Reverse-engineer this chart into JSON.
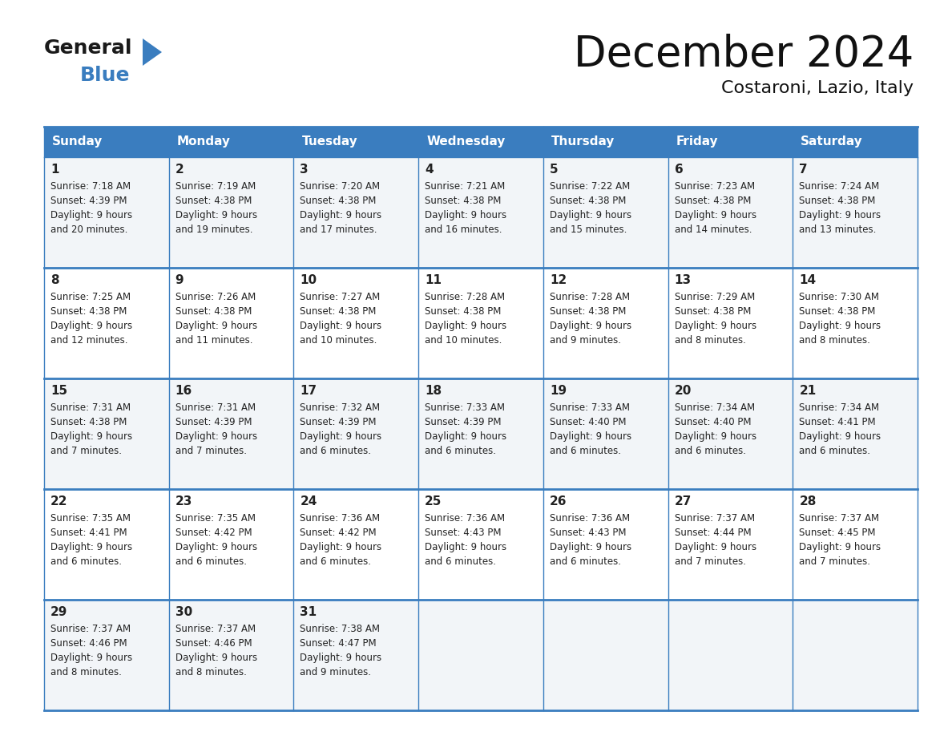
{
  "title": "December 2024",
  "subtitle": "Costaroni, Lazio, Italy",
  "header_bg": "#3a7dbf",
  "header_text": "#ffffff",
  "border_color": "#3a7dbf",
  "cell_bg_light": "#f2f5f8",
  "cell_bg_white": "#ffffff",
  "text_color": "#222222",
  "days_of_week": [
    "Sunday",
    "Monday",
    "Tuesday",
    "Wednesday",
    "Thursday",
    "Friday",
    "Saturday"
  ],
  "weeks": [
    [
      {
        "day": 1,
        "sunrise": "7:18 AM",
        "sunset": "4:39 PM",
        "daylight_line3": "Daylight: 9 hours",
        "daylight_line4": "and 20 minutes."
      },
      {
        "day": 2,
        "sunrise": "7:19 AM",
        "sunset": "4:38 PM",
        "daylight_line3": "Daylight: 9 hours",
        "daylight_line4": "and 19 minutes."
      },
      {
        "day": 3,
        "sunrise": "7:20 AM",
        "sunset": "4:38 PM",
        "daylight_line3": "Daylight: 9 hours",
        "daylight_line4": "and 17 minutes."
      },
      {
        "day": 4,
        "sunrise": "7:21 AM",
        "sunset": "4:38 PM",
        "daylight_line3": "Daylight: 9 hours",
        "daylight_line4": "and 16 minutes."
      },
      {
        "day": 5,
        "sunrise": "7:22 AM",
        "sunset": "4:38 PM",
        "daylight_line3": "Daylight: 9 hours",
        "daylight_line4": "and 15 minutes."
      },
      {
        "day": 6,
        "sunrise": "7:23 AM",
        "sunset": "4:38 PM",
        "daylight_line3": "Daylight: 9 hours",
        "daylight_line4": "and 14 minutes."
      },
      {
        "day": 7,
        "sunrise": "7:24 AM",
        "sunset": "4:38 PM",
        "daylight_line3": "Daylight: 9 hours",
        "daylight_line4": "and 13 minutes."
      }
    ],
    [
      {
        "day": 8,
        "sunrise": "7:25 AM",
        "sunset": "4:38 PM",
        "daylight_line3": "Daylight: 9 hours",
        "daylight_line4": "and 12 minutes."
      },
      {
        "day": 9,
        "sunrise": "7:26 AM",
        "sunset": "4:38 PM",
        "daylight_line3": "Daylight: 9 hours",
        "daylight_line4": "and 11 minutes."
      },
      {
        "day": 10,
        "sunrise": "7:27 AM",
        "sunset": "4:38 PM",
        "daylight_line3": "Daylight: 9 hours",
        "daylight_line4": "and 10 minutes."
      },
      {
        "day": 11,
        "sunrise": "7:28 AM",
        "sunset": "4:38 PM",
        "daylight_line3": "Daylight: 9 hours",
        "daylight_line4": "and 10 minutes."
      },
      {
        "day": 12,
        "sunrise": "7:28 AM",
        "sunset": "4:38 PM",
        "daylight_line3": "Daylight: 9 hours",
        "daylight_line4": "and 9 minutes."
      },
      {
        "day": 13,
        "sunrise": "7:29 AM",
        "sunset": "4:38 PM",
        "daylight_line3": "Daylight: 9 hours",
        "daylight_line4": "and 8 minutes."
      },
      {
        "day": 14,
        "sunrise": "7:30 AM",
        "sunset": "4:38 PM",
        "daylight_line3": "Daylight: 9 hours",
        "daylight_line4": "and 8 minutes."
      }
    ],
    [
      {
        "day": 15,
        "sunrise": "7:31 AM",
        "sunset": "4:38 PM",
        "daylight_line3": "Daylight: 9 hours",
        "daylight_line4": "and 7 minutes."
      },
      {
        "day": 16,
        "sunrise": "7:31 AM",
        "sunset": "4:39 PM",
        "daylight_line3": "Daylight: 9 hours",
        "daylight_line4": "and 7 minutes."
      },
      {
        "day": 17,
        "sunrise": "7:32 AM",
        "sunset": "4:39 PM",
        "daylight_line3": "Daylight: 9 hours",
        "daylight_line4": "and 6 minutes."
      },
      {
        "day": 18,
        "sunrise": "7:33 AM",
        "sunset": "4:39 PM",
        "daylight_line3": "Daylight: 9 hours",
        "daylight_line4": "and 6 minutes."
      },
      {
        "day": 19,
        "sunrise": "7:33 AM",
        "sunset": "4:40 PM",
        "daylight_line3": "Daylight: 9 hours",
        "daylight_line4": "and 6 minutes."
      },
      {
        "day": 20,
        "sunrise": "7:34 AM",
        "sunset": "4:40 PM",
        "daylight_line3": "Daylight: 9 hours",
        "daylight_line4": "and 6 minutes."
      },
      {
        "day": 21,
        "sunrise": "7:34 AM",
        "sunset": "4:41 PM",
        "daylight_line3": "Daylight: 9 hours",
        "daylight_line4": "and 6 minutes."
      }
    ],
    [
      {
        "day": 22,
        "sunrise": "7:35 AM",
        "sunset": "4:41 PM",
        "daylight_line3": "Daylight: 9 hours",
        "daylight_line4": "and 6 minutes."
      },
      {
        "day": 23,
        "sunrise": "7:35 AM",
        "sunset": "4:42 PM",
        "daylight_line3": "Daylight: 9 hours",
        "daylight_line4": "and 6 minutes."
      },
      {
        "day": 24,
        "sunrise": "7:36 AM",
        "sunset": "4:42 PM",
        "daylight_line3": "Daylight: 9 hours",
        "daylight_line4": "and 6 minutes."
      },
      {
        "day": 25,
        "sunrise": "7:36 AM",
        "sunset": "4:43 PM",
        "daylight_line3": "Daylight: 9 hours",
        "daylight_line4": "and 6 minutes."
      },
      {
        "day": 26,
        "sunrise": "7:36 AM",
        "sunset": "4:43 PM",
        "daylight_line3": "Daylight: 9 hours",
        "daylight_line4": "and 6 minutes."
      },
      {
        "day": 27,
        "sunrise": "7:37 AM",
        "sunset": "4:44 PM",
        "daylight_line3": "Daylight: 9 hours",
        "daylight_line4": "and 7 minutes."
      },
      {
        "day": 28,
        "sunrise": "7:37 AM",
        "sunset": "4:45 PM",
        "daylight_line3": "Daylight: 9 hours",
        "daylight_line4": "and 7 minutes."
      }
    ],
    [
      {
        "day": 29,
        "sunrise": "7:37 AM",
        "sunset": "4:46 PM",
        "daylight_line3": "Daylight: 9 hours",
        "daylight_line4": "and 8 minutes."
      },
      {
        "day": 30,
        "sunrise": "7:37 AM",
        "sunset": "4:46 PM",
        "daylight_line3": "Daylight: 9 hours",
        "daylight_line4": "and 8 minutes."
      },
      {
        "day": 31,
        "sunrise": "7:38 AM",
        "sunset": "4:47 PM",
        "daylight_line3": "Daylight: 9 hours",
        "daylight_line4": "and 9 minutes."
      },
      null,
      null,
      null,
      null
    ]
  ]
}
